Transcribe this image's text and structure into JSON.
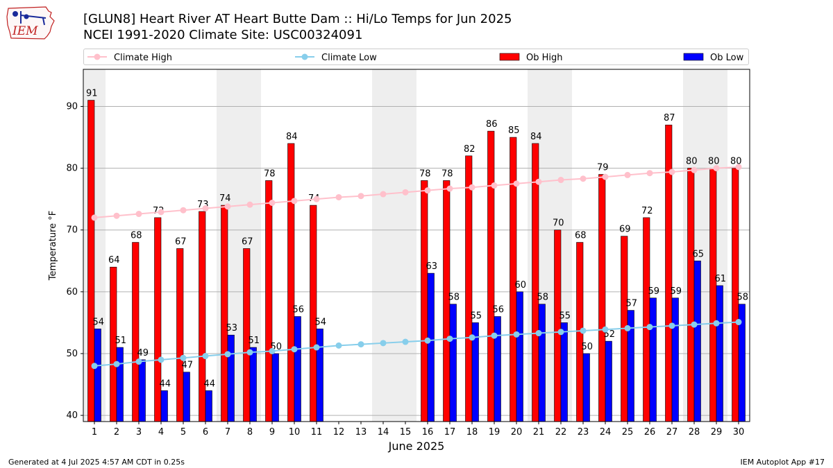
{
  "header": {
    "title_line1": "[GLUN8] Heart River  AT Heart Butte Dam :: Hi/Lo Temps for Jun 2025",
    "title_line2": "NCEI 1991-2020 Climate Site: USC00324091",
    "logo_text": "IEM"
  },
  "footer": {
    "left": "Generated at 4 Jul 2025 4:57 AM CDT in 0.25s",
    "right": "IEM Autoplot App #17"
  },
  "colors": {
    "ob_high": "#ff0000",
    "ob_low": "#0000ff",
    "climate_high": "#ffc0cb",
    "climate_low": "#87ceeb",
    "weekend_shade": "#eeeeee",
    "grid": "#b0b0b0"
  },
  "chart_data": {
    "type": "bar",
    "xlabel": "June 2025",
    "ylabel": "Temperature °F",
    "ylim": [
      39,
      96
    ],
    "yticks": [
      40,
      50,
      60,
      70,
      80,
      90
    ],
    "grid": true,
    "legend_placement": "top",
    "categories": [
      "1",
      "2",
      "3",
      "4",
      "5",
      "6",
      "7",
      "8",
      "9",
      "10",
      "11",
      "12",
      "13",
      "14",
      "15",
      "16",
      "17",
      "18",
      "19",
      "20",
      "21",
      "22",
      "23",
      "24",
      "25",
      "26",
      "27",
      "28",
      "29",
      "30"
    ],
    "shaded_days": [
      1,
      7,
      8,
      14,
      15,
      21,
      22,
      28,
      29
    ],
    "series": [
      {
        "name": "Ob High",
        "kind": "bar",
        "values": [
          91,
          64,
          68,
          72,
          67,
          73,
          74,
          67,
          78,
          84,
          74,
          null,
          null,
          null,
          null,
          78,
          78,
          82,
          86,
          85,
          84,
          70,
          68,
          79,
          69,
          72,
          87,
          80,
          80,
          80
        ]
      },
      {
        "name": "Ob Low",
        "kind": "bar",
        "values": [
          54,
          51,
          49,
          44,
          47,
          44,
          53,
          51,
          50,
          56,
          54,
          null,
          null,
          null,
          null,
          63,
          58,
          55,
          56,
          60,
          58,
          55,
          50,
          52,
          57,
          59,
          59,
          65,
          61,
          58
        ]
      },
      {
        "name": "Climate High",
        "kind": "line",
        "values": [
          72.0,
          72.3,
          72.6,
          72.9,
          73.2,
          73.5,
          73.8,
          74.1,
          74.4,
          74.7,
          75.0,
          75.3,
          75.5,
          75.8,
          76.1,
          76.4,
          76.7,
          76.9,
          77.2,
          77.5,
          77.8,
          78.1,
          78.3,
          78.6,
          78.9,
          79.2,
          79.4,
          79.7,
          80.0,
          80.2
        ]
      },
      {
        "name": "Climate Low",
        "kind": "line",
        "values": [
          48.0,
          48.3,
          48.7,
          49.0,
          49.3,
          49.6,
          49.9,
          50.2,
          50.4,
          50.7,
          51.0,
          51.3,
          51.5,
          51.7,
          51.9,
          52.1,
          52.4,
          52.6,
          52.9,
          53.1,
          53.3,
          53.5,
          53.7,
          53.9,
          54.1,
          54.3,
          54.5,
          54.7,
          54.9,
          55.1
        ]
      }
    ]
  }
}
